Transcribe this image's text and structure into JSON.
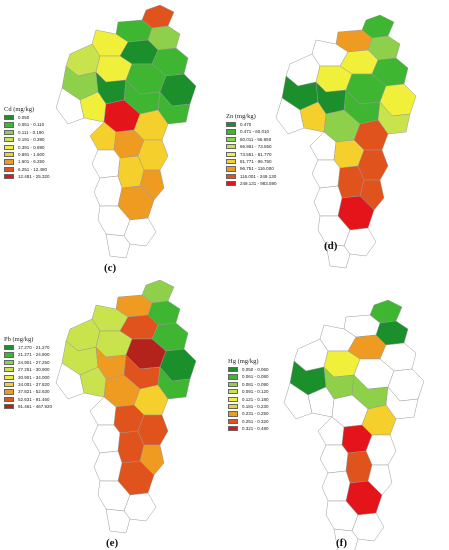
{
  "panels": [
    {
      "id": "c",
      "label": "(c)",
      "legend_title": "Cd (mg/kg)",
      "classes": [
        {
          "range": "0.050",
          "color": "#1a8f2c"
        },
        {
          "range": "0.051 - 0.110",
          "color": "#3fb631"
        },
        {
          "range": "0.111 - 0.190",
          "color": "#8fd04a"
        },
        {
          "range": "0.191 - 0.390",
          "color": "#c9e34c"
        },
        {
          "range": "0.391 - 0.890",
          "color": "#f0ef3a"
        },
        {
          "range": "0.891 - 1.600",
          "color": "#f5cf2c"
        },
        {
          "range": "1.601 - 6.250",
          "color": "#ef9b22"
        },
        {
          "range": "6.251 - 12.480",
          "color": "#e0531c"
        },
        {
          "range": "12.481 - 25.320",
          "color": "#e4141b"
        }
      ]
    },
    {
      "id": "d",
      "label": "(d)",
      "legend_title": "Zn (mg/kg)",
      "classes": [
        {
          "range": "0.470",
          "color": "#1a8f2c"
        },
        {
          "range": "0.471 - 60.010",
          "color": "#3fb631"
        },
        {
          "range": "60.011 - 66.950",
          "color": "#8fd04a"
        },
        {
          "range": "66.951 - 73.550",
          "color": "#c9e34c"
        },
        {
          "range": "73.551 - 81.770",
          "color": "#f0ef3a"
        },
        {
          "range": "81.771 - 96.750",
          "color": "#f5cf2c"
        },
        {
          "range": "96.751 - 116.000",
          "color": "#ef9b22"
        },
        {
          "range": "116.001 - 249.130",
          "color": "#e0531c"
        },
        {
          "range": "249.131 - 983.590",
          "color": "#e4141b"
        }
      ]
    },
    {
      "id": "e",
      "label": "(e)",
      "legend_title": "Pb (mg/kg)",
      "classes": [
        {
          "range": "17.270 - 21.270",
          "color": "#1a8f2c"
        },
        {
          "range": "21.271 - 24.900",
          "color": "#3fb631"
        },
        {
          "range": "24.901 - 27.250",
          "color": "#8fd04a"
        },
        {
          "range": "27.251 - 30.900",
          "color": "#c9e34c"
        },
        {
          "range": "30.901 - 34.000",
          "color": "#f0ef3a"
        },
        {
          "range": "34.001 - 37.820",
          "color": "#f5cf2c"
        },
        {
          "range": "37.821 - 52.630",
          "color": "#ef9b22"
        },
        {
          "range": "52.631 - 91.460",
          "color": "#e0531c"
        },
        {
          "range": "91.461 - 467.920",
          "color": "#b4231b"
        }
      ]
    },
    {
      "id": "f",
      "label": "(f)",
      "legend_title": "Hg (mg/kg)",
      "classes": [
        {
          "range": "0.050 - 0.060",
          "color": "#1a8f2c"
        },
        {
          "range": "0.061 - 0.080",
          "color": "#3fb631"
        },
        {
          "range": "0.081 - 0.090",
          "color": "#8fd04a"
        },
        {
          "range": "0.091 - 0.120",
          "color": "#c9e34c"
        },
        {
          "range": "0.121 - 0.180",
          "color": "#f0ef3a"
        },
        {
          "range": "0.181 - 0.230",
          "color": "#f5cf2c"
        },
        {
          "range": "0.231 - 0.250",
          "color": "#ef9b22"
        },
        {
          "range": "0.251 - 0.320",
          "color": "#e0531c"
        },
        {
          "range": "0.321 - 0.480",
          "color": "#e4141b"
        }
      ]
    }
  ]
}
